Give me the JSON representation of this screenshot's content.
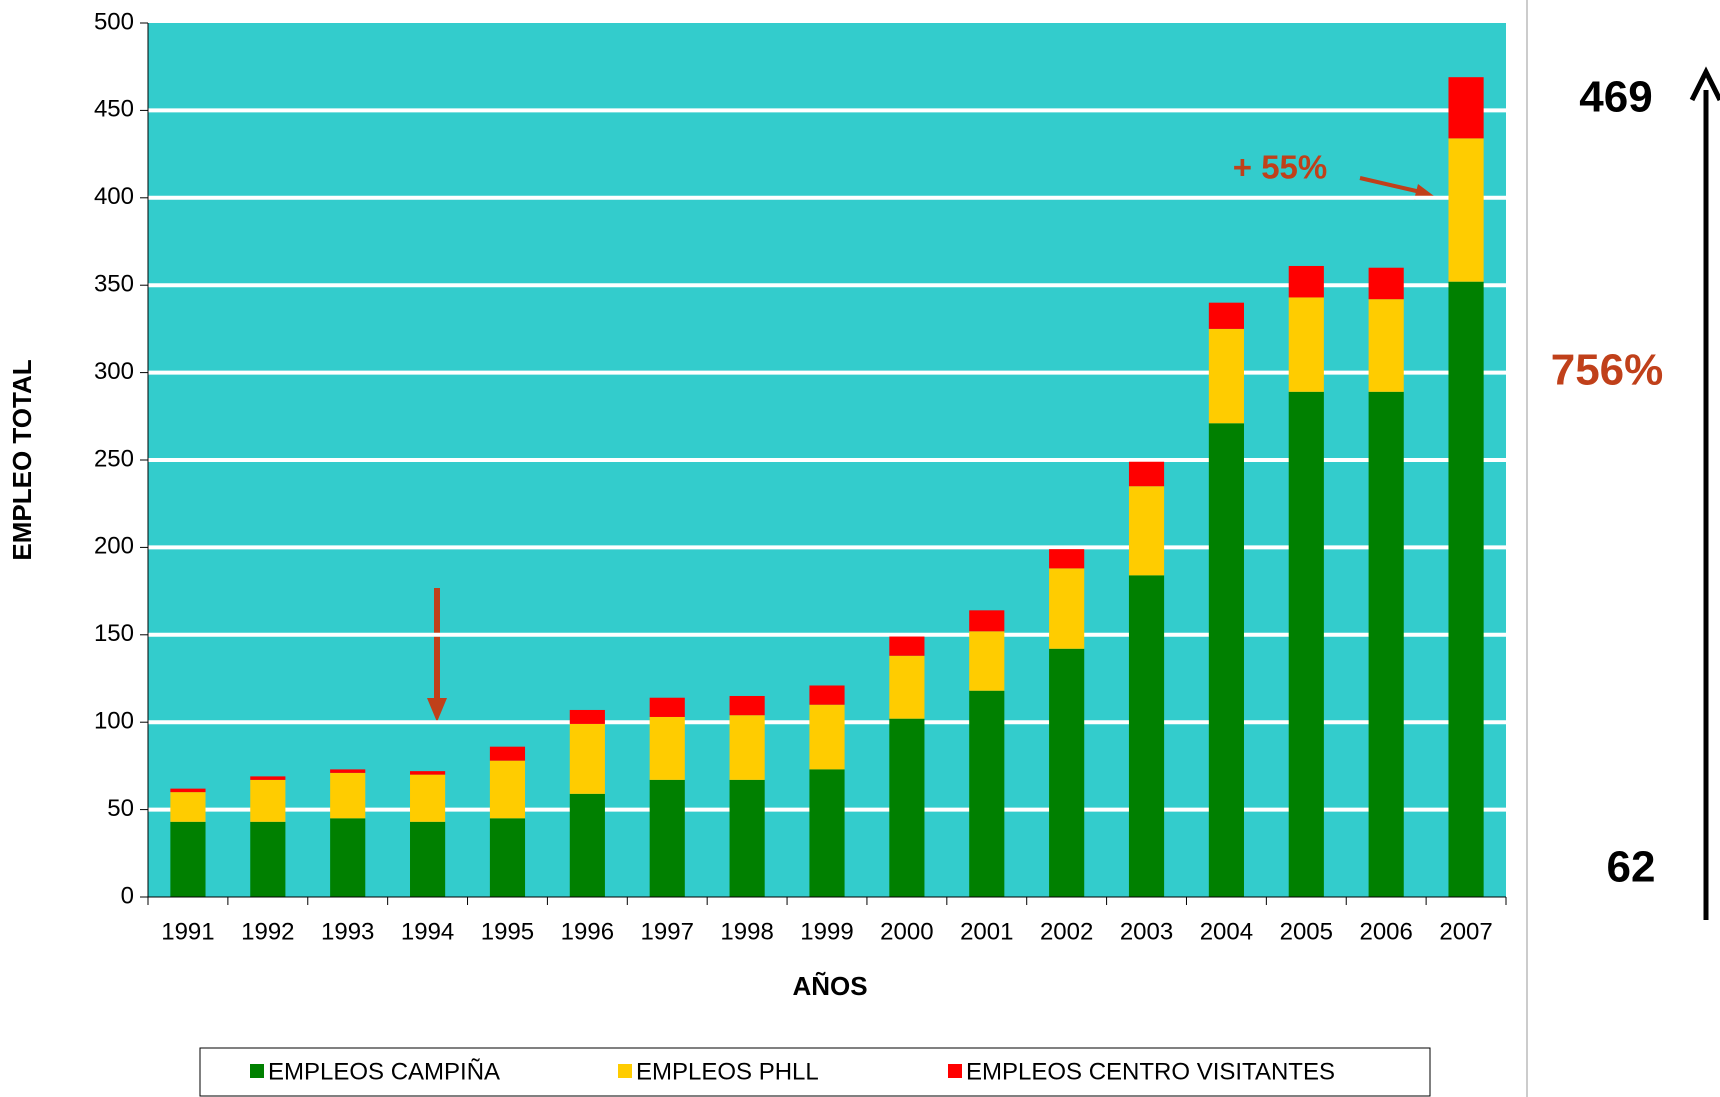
{
  "chart_data": {
    "type": "stacked_bar",
    "y_label": "EMPLEO TOTAL",
    "x_label": "AÑOS",
    "categories": [
      "1991",
      "1992",
      "1993",
      "1994",
      "1995",
      "1996",
      "1997",
      "1998",
      "1999",
      "2000",
      "2001",
      "2002",
      "2003",
      "2004",
      "2005",
      "2006",
      "2007"
    ],
    "series": [
      {
        "name": "EMPLEOS CAMPIÑA",
        "color": "#008000",
        "values": [
          43,
          43,
          45,
          43,
          45,
          59,
          67,
          67,
          73,
          102,
          118,
          142,
          184,
          271,
          289,
          289,
          352
        ]
      },
      {
        "name": "EMPLEOS PHLL",
        "color": "#ffcc00",
        "values": [
          17,
          24,
          26,
          27,
          33,
          40,
          36,
          37,
          37,
          36,
          34,
          46,
          51,
          54,
          54,
          53,
          82
        ]
      },
      {
        "name": "EMPLEOS CENTRO VISITANTES",
        "color": "#ff0000",
        "values": [
          2,
          2,
          2,
          2,
          8,
          8,
          11,
          11,
          11,
          11,
          12,
          11,
          14,
          15,
          18,
          18,
          35
        ]
      }
    ],
    "ylim": [
      0,
      500
    ],
    "yticks": [
      0,
      50,
      100,
      150,
      200,
      250,
      300,
      350,
      400,
      450,
      500
    ],
    "grid": true,
    "plot_background": "#33cccc",
    "annotations": {
      "growth_pct": "+ 55%",
      "end_total": "469",
      "start_total": "62",
      "total_growth": "756%"
    },
    "legend": "bottom"
  }
}
